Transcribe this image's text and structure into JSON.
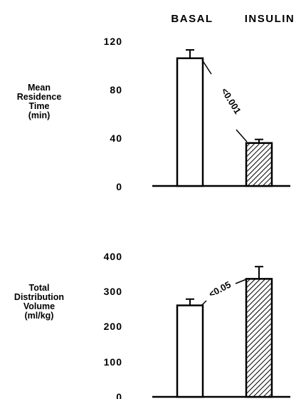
{
  "chart_data": [
    {
      "type": "bar",
      "categories": [
        "BASAL",
        "INSULIN"
      ],
      "values": [
        107,
        36
      ],
      "errors": [
        7,
        3
      ],
      "ylabel": [
        "Mean",
        "Residence",
        "Time",
        "(min)"
      ],
      "yticks": [
        "0",
        "40",
        "80",
        "120"
      ],
      "ylim": [
        0,
        120
      ],
      "annotation": "<0.001",
      "fills": [
        "white",
        "hatched"
      ]
    },
    {
      "type": "bar",
      "categories": [
        "BASAL",
        "INSULIN"
      ],
      "values": [
        262,
        338
      ],
      "errors": [
        18,
        35
      ],
      "ylabel": [
        "Total",
        "Distribution",
        "Volume",
        "(ml/kg)"
      ],
      "yticks": [
        "0",
        "100",
        "200",
        "300",
        "400"
      ],
      "ylim": [
        0,
        400
      ],
      "annotation": "<0.05",
      "fills": [
        "white",
        "hatched"
      ]
    }
  ],
  "column_labels": [
    "BASAL",
    "INSULIN"
  ],
  "colors": {
    "ink": "#000000",
    "background": "#ffffff"
  }
}
